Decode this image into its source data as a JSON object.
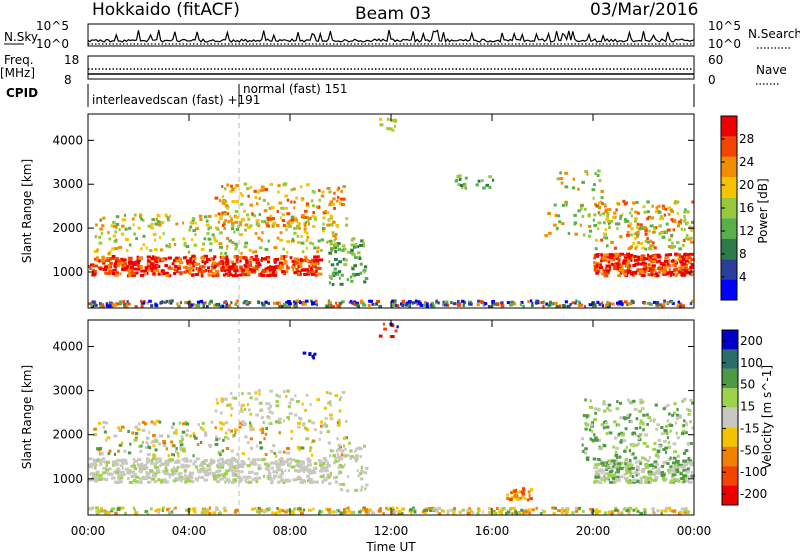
{
  "header": {
    "station": "Hokkaido (fitACF)",
    "beam": "Beam 03",
    "date": "03/Mar/2016"
  },
  "strips": {
    "nsky_label": "N.Sky",
    "nsky_max": "10^5",
    "nsky_min": "10^0",
    "nsearch_label": "N.Search",
    "freq_label_1": "Freq.",
    "freq_label_2": "[MHz]",
    "freq_max": "18",
    "freq_min": "8",
    "nave_label": "Nave",
    "nave_max": "60",
    "nave_min": "0",
    "cpid_label": "CPID",
    "cpid_first": "interleavedscan (fast) +191",
    "cpid_second": "normal (fast) 151"
  },
  "colors": {
    "power": [
      "#0000ff",
      "#2a3f9c",
      "#2e7b4a",
      "#58b04a",
      "#99c93a",
      "#f5c400",
      "#f28c00",
      "#f24500",
      "#ee0000"
    ],
    "velocity": [
      "#ee0000",
      "#f24500",
      "#f08000",
      "#f5c200",
      "#c8c8c0",
      "#9cd34a",
      "#4e9a42",
      "#2a6e6a",
      "#0000c8"
    ]
  },
  "chart_data": [
    {
      "type": "heatmap",
      "title": "Power",
      "xlabel": "",
      "ylabel": "Slant Range [km]",
      "x_ticks": [
        "00:00",
        "04:00",
        "08:00",
        "12:00",
        "16:00",
        "20:00",
        "00:00"
      ],
      "y_ticks": [
        1000,
        2000,
        3000,
        4000
      ],
      "ylim": [
        180,
        4600
      ],
      "colorbar_label": "Power [dB]",
      "colorbar_ticks": [
        4,
        8,
        12,
        16,
        20,
        24,
        28
      ]
    },
    {
      "type": "heatmap",
      "title": "Velocity",
      "xlabel": "Time UT",
      "ylabel": "Slant Range [km]",
      "x_ticks": [
        "00:00",
        "04:00",
        "08:00",
        "12:00",
        "16:00",
        "20:00",
        "00:00"
      ],
      "y_ticks": [
        1000,
        2000,
        3000,
        4000
      ],
      "ylim": [
        180,
        4600
      ],
      "colorbar_label": "Velocity [m s^-1]",
      "colorbar_ticks": [
        200,
        100,
        50,
        15,
        -15,
        -50,
        -100,
        -200
      ]
    }
  ]
}
